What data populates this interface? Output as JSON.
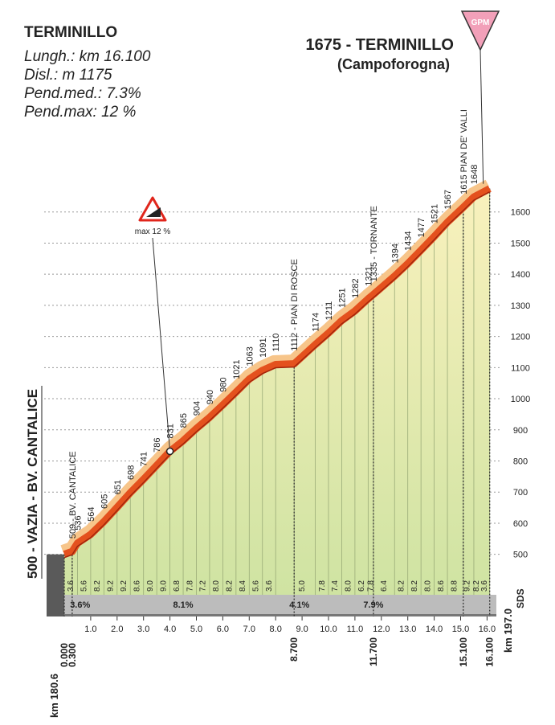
{
  "chart_data": {
    "type": "elevation-profile",
    "title": "TERMINILLO",
    "stats": [
      "Lungh.: km 16.100",
      "Disl.: m 1175",
      "Pend.med.: 7.3%",
      "Pend.max: 12 %"
    ],
    "summit_subtitle": "(Campoforogna)",
    "summit_sign": "GPM",
    "x": [
      0,
      0.3,
      0.5,
      1,
      1.5,
      2,
      2.5,
      3,
      3.5,
      4,
      4.5,
      5,
      5.5,
      6,
      6.5,
      7,
      7.5,
      8,
      8.7,
      9.5,
      10,
      10.5,
      11,
      11.5,
      11.7,
      12.5,
      13,
      13.5,
      14,
      14.5,
      15.1,
      15.5,
      16.1
    ],
    "values": [
      500,
      509,
      536,
      564,
      605,
      651,
      698,
      741,
      786,
      831,
      865,
      904,
      940,
      980,
      1021,
      1063,
      1091,
      1110,
      1112,
      1174,
      1211,
      1251,
      1282,
      1321,
      1335,
      1394,
      1434,
      1477,
      1521,
      1567,
      1615,
      1648,
      1675
    ],
    "value_labels": [
      "500 - VAZIA - BV. CANTALICE",
      "509 - BV. CANTALICE",
      "536",
      "564",
      "605",
      "651",
      "698",
      "741",
      "786",
      "831",
      "865",
      "904",
      "940",
      "980",
      "1021",
      "1063",
      "1091",
      "1110",
      "1112 - PIAN DI ROSCE",
      "1174",
      "1211",
      "1251",
      "1282",
      "1321",
      "1335 - TORNANTE",
      "1394",
      "1434",
      "1477",
      "1521",
      "1567",
      "1615  PIAN DE' VALLI",
      "1648",
      "1675 - TERMINILLO"
    ],
    "color": "#e4511e",
    "ylim": [
      370,
      1700
    ],
    "yticks": [
      500,
      600,
      700,
      800,
      900,
      1000,
      1100,
      1200,
      1300,
      1400,
      1500,
      1600
    ],
    "grid": true,
    "y_axis_label": "SDS",
    "xticks": [
      {
        "value": 1,
        "label": "1.0"
      },
      {
        "value": 2,
        "label": "2.0"
      },
      {
        "value": 3,
        "label": "3.0"
      },
      {
        "value": 4,
        "label": "4.0"
      },
      {
        "value": 5,
        "label": "5.0"
      },
      {
        "value": 6,
        "label": "6.0"
      },
      {
        "value": 7,
        "label": "7.0"
      },
      {
        "value": 8,
        "label": "8.0"
      },
      {
        "value": 9,
        "label": "9.0"
      },
      {
        "value": 10,
        "label": "10.0"
      },
      {
        "value": 11,
        "label": "11.0"
      },
      {
        "value": 12,
        "label": "12.0"
      },
      {
        "value": 13,
        "label": "13.0"
      },
      {
        "value": 14,
        "label": "14.0"
      },
      {
        "value": 15,
        "label": "15.0"
      },
      {
        "value": 16,
        "label": "16.0"
      }
    ],
    "xmarks": [
      {
        "value": 0,
        "label": "0.000"
      },
      {
        "value": 0.3,
        "label": "0.300"
      },
      {
        "value": 8.7,
        "label": "8.700"
      },
      {
        "value": 11.7,
        "label": "11.700"
      },
      {
        "value": 15.1,
        "label": "15.100"
      },
      {
        "value": 16.1,
        "label": "16.100"
      }
    ],
    "start_km_label": "km 180.6",
    "end_km_label": "km 197.0",
    "segment_gradients": {
      "x": [
        0.25,
        0.75,
        1.25,
        1.75,
        2.25,
        2.75,
        3.25,
        3.75,
        4.25,
        4.75,
        5.25,
        5.75,
        6.25,
        6.75,
        7.25,
        7.75,
        9.0,
        9.75,
        10.25,
        10.75,
        11.25,
        11.6,
        12.1,
        12.75,
        13.25,
        13.75,
        14.25,
        14.75,
        15.25,
        15.6,
        15.9
      ],
      "labels": [
        "3.6",
        "5.6",
        "8.2",
        "9.2",
        "9.2",
        "8.6",
        "9.0",
        "9.0",
        "6.8",
        "7.8",
        "7.2",
        "8.0",
        "8.2",
        "8.4",
        "5.6",
        "3.6",
        "5.0",
        "7.8",
        "7.4",
        "8.0",
        "6.2",
        "7.8",
        "6.4",
        "8.2",
        "8.2",
        "8.0",
        "8.6",
        "8.8",
        "9.2",
        "8.2",
        "3.6"
      ]
    },
    "average_gradients": {
      "x": [
        0.6,
        4.5,
        8.9,
        11.7
      ],
      "labels": [
        "3.6%",
        "8.1%",
        "4.1%",
        "7.9%"
      ]
    },
    "max_gradient": {
      "label": "max 12 %",
      "x": 4
    }
  }
}
